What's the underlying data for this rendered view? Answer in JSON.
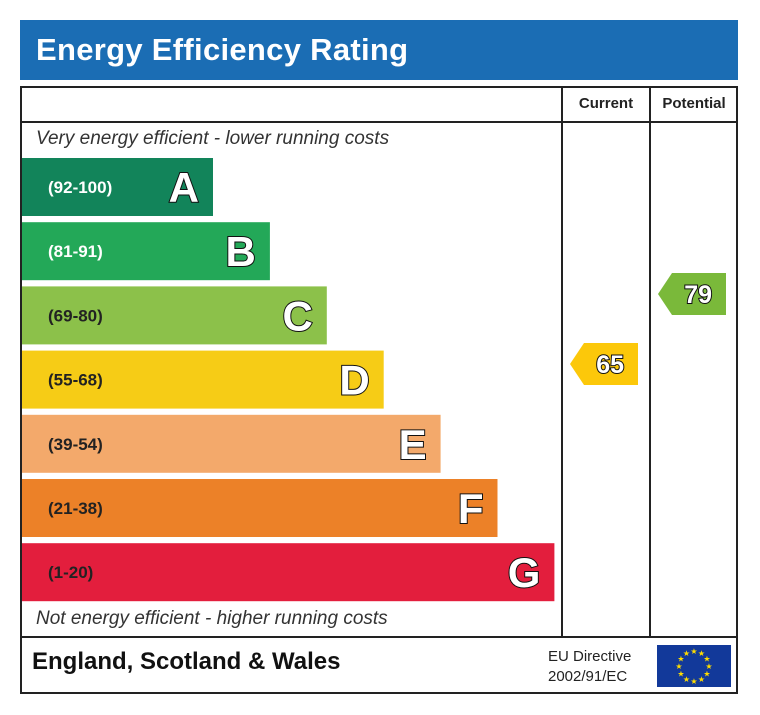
{
  "title": "Energy Efficiency Rating",
  "columns": {
    "current": "Current",
    "potential": "Potential"
  },
  "top_note": "Very energy efficient - lower running costs",
  "bottom_note": "Not energy efficient - higher running costs",
  "footer": {
    "region": "England, Scotland & Wales",
    "directive_line1": "EU Directive",
    "directive_line2": "2002/91/EC",
    "flag_icon": "eu-flag-icon"
  },
  "chart_data": {
    "type": "bar",
    "bands": [
      {
        "letter": "A",
        "range": "(92-100)",
        "color": "#12845a"
      },
      {
        "letter": "B",
        "range": "(81-91)",
        "color": "#23a858"
      },
      {
        "letter": "C",
        "range": "(69-80)",
        "color": "#8cc14a"
      },
      {
        "letter": "D",
        "range": "(55-68)",
        "color": "#f6cc16"
      },
      {
        "letter": "E",
        "range": "(39-54)",
        "color": "#f3a96b"
      },
      {
        "letter": "F",
        "range": "(21-38)",
        "color": "#ec8128"
      },
      {
        "letter": "G",
        "range": "(1-20)",
        "color": "#e31e3d"
      }
    ],
    "current": {
      "value": 65,
      "band": "D",
      "color": "#fcc80a"
    },
    "potential": {
      "value": 79,
      "band": "C",
      "color": "#7ab93a"
    }
  }
}
